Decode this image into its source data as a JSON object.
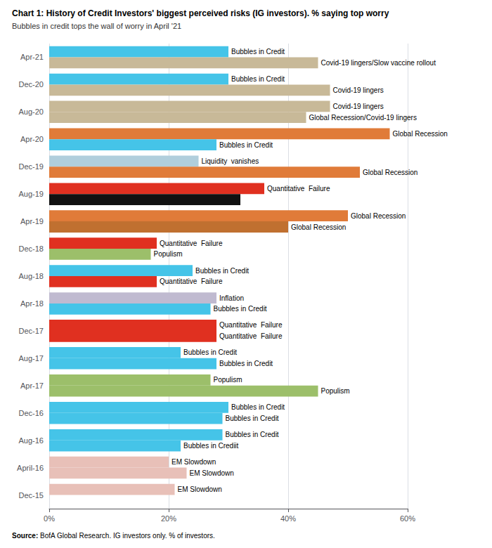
{
  "chart_data": {
    "type": "bar",
    "orientation": "horizontal",
    "title": "Chart 1: History of Credit Investors' biggest perceived risks (IG investors). % saying top worry",
    "subtitle": "Bubbles in credit tops the wall of worry in April '21",
    "source_label": "Source:",
    "source": "BofA Global Research. IG investors only. % of investors.",
    "categories": [
      "Apr-21",
      "Dec-20",
      "Aug-20",
      "Apr-20",
      "Dec-19",
      "Aug-19",
      "Apr-19",
      "Dec-18",
      "Aug-18",
      "Apr-18",
      "Dec-17",
      "Aug-17",
      "Apr-17",
      "Dec-16",
      "Aug-16",
      "April-16",
      "Dec-15"
    ],
    "series": [
      {
        "values": [
          30,
          30,
          47,
          57,
          25,
          36,
          50,
          18,
          24,
          28,
          28,
          22,
          27,
          30,
          29,
          20,
          21
        ],
        "colors": [
          "#45C4E8",
          "#45C4E8",
          "#C8B998",
          "#E07B39",
          "#B0CEDC",
          "#E03020",
          "#E07B39",
          "#E03020",
          "#45C4E8",
          "#C0BAD0",
          "#E03020",
          "#45C4E8",
          "#9CBF6A",
          "#45C4E8",
          "#45C4E8",
          "#E8C0B8",
          "#E8C0B8"
        ],
        "annotations": [
          "Bubbles in Credit",
          "Bubbles in Credit",
          "Covid-19 lingers",
          "Global Recession",
          "Liquidity  vanishes",
          "Quantitative  Failure",
          "Global Recession",
          "Quantitative  Failure",
          "Bubbles in Credit",
          "Inflation",
          "Quantitative  Failure",
          "Bubbles in Credit",
          "Populism",
          "Bubbles in Credit",
          "Bubbles in Credit",
          "EM Slowdown",
          "EM Slowdown"
        ]
      },
      {
        "values": [
          45,
          47,
          43,
          28,
          52,
          32,
          40,
          17,
          18,
          27,
          28,
          28,
          45,
          29,
          22,
          23,
          null
        ],
        "colors": [
          "#C8B998",
          "#C8B998",
          "#C8B998",
          "#45C4E8",
          "#E07B39",
          "#111111",
          "#C07030",
          "#9CBF6A",
          "#E03020",
          "#45C4E8",
          "#E03020",
          "#45C4E8",
          "#9CBF6A",
          "#45C4E8",
          "#45C4E8",
          "#E8C0B8",
          null
        ],
        "annotations": [
          "Covid-19 lingers/Slow vaccine rollout",
          "Covid-19 lingers",
          "Global Recession/Covid-19 lingers",
          "Bubbles in Credit",
          "Global Recession",
          null,
          "Global Recession",
          "Populism",
          "Quantitative  Failure",
          "Bubbles in Credit",
          "Quantitative  Failure",
          "Bubbles in Credit",
          "Populism",
          "Bubbles in Credit",
          "Bubbles in Crediit",
          "EM Slowdown",
          null
        ]
      }
    ],
    "xlim": [
      0,
      60
    ],
    "xticks": [
      {
        "value": 0,
        "label": "0%"
      },
      {
        "value": 20,
        "label": "20%"
      },
      {
        "value": 40,
        "label": "40%"
      },
      {
        "value": 60,
        "label": "60%"
      }
    ],
    "grid": true
  }
}
